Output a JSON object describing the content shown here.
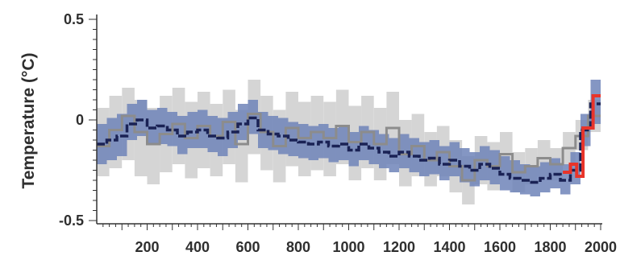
{
  "chart_data": {
    "type": "line",
    "title": "",
    "xlabel": "",
    "ylabel": "Temperature (°C)",
    "xlim": [
      0,
      2000
    ],
    "ylim": [
      -0.5,
      0.5
    ],
    "x_ticks": [
      200,
      400,
      600,
      800,
      1000,
      1200,
      1400,
      1600,
      1800,
      2000
    ],
    "x_tick_labels": [
      "200",
      "400",
      "600",
      "800",
      "1000",
      "1200",
      "1400",
      "1600",
      "1800",
      "2000"
    ],
    "y_ticks": [
      0.5,
      0,
      -0.5
    ],
    "y_tick_labels": [
      "0.5",
      "0",
      "-0.5"
    ],
    "grid": false,
    "legend": "none",
    "colors": {
      "dark_series": "#1a2255",
      "dark_band": "#6f84b8",
      "gray_series": "#8c8c8c",
      "gray_band": "#d3d3d3",
      "red_series": "#e8342a",
      "axis": "#333333"
    },
    "series": [
      {
        "id": "dark",
        "step": 40,
        "x": [
          0,
          40,
          80,
          120,
          160,
          200,
          240,
          280,
          320,
          360,
          400,
          440,
          480,
          520,
          560,
          600,
          640,
          680,
          720,
          760,
          800,
          840,
          880,
          920,
          960,
          1000,
          1040,
          1080,
          1120,
          1160,
          1200,
          1240,
          1280,
          1320,
          1360,
          1400,
          1440,
          1480,
          1520,
          1560,
          1600,
          1640,
          1680,
          1720,
          1760,
          1800,
          1840,
          1880,
          1920,
          1960
        ],
        "y": [
          -0.12,
          -0.1,
          -0.08,
          -0.02,
          0,
          -0.04,
          -0.03,
          -0.05,
          -0.08,
          -0.06,
          -0.05,
          -0.08,
          -0.09,
          -0.06,
          -0.02,
          0.01,
          -0.05,
          -0.07,
          -0.08,
          -0.1,
          -0.11,
          -0.12,
          -0.11,
          -0.13,
          -0.12,
          -0.15,
          -0.12,
          -0.14,
          -0.16,
          -0.18,
          -0.16,
          -0.18,
          -0.2,
          -0.19,
          -0.22,
          -0.2,
          -0.23,
          -0.25,
          -0.22,
          -0.24,
          -0.27,
          -0.29,
          -0.3,
          -0.31,
          -0.29,
          -0.27,
          -0.3,
          -0.25,
          -0.05,
          0.08
        ],
        "lo": [
          -0.22,
          -0.2,
          -0.18,
          -0.1,
          -0.08,
          -0.12,
          -0.12,
          -0.13,
          -0.17,
          -0.14,
          -0.14,
          -0.16,
          -0.18,
          -0.14,
          -0.1,
          -0.07,
          -0.14,
          -0.15,
          -0.17,
          -0.18,
          -0.19,
          -0.2,
          -0.19,
          -0.21,
          -0.2,
          -0.23,
          -0.2,
          -0.22,
          -0.24,
          -0.26,
          -0.24,
          -0.26,
          -0.28,
          -0.27,
          -0.3,
          -0.28,
          -0.31,
          -0.33,
          -0.3,
          -0.32,
          -0.35,
          -0.36,
          -0.37,
          -0.38,
          -0.36,
          -0.34,
          -0.37,
          -0.32,
          -0.13,
          -0.02
        ],
        "hi": [
          -0.02,
          0.01,
          0.03,
          0.08,
          0.1,
          0.05,
          0.06,
          0.04,
          0.02,
          0.04,
          0.05,
          0.02,
          0.01,
          0.04,
          0.08,
          0.1,
          0.04,
          0.02,
          0.01,
          -0.01,
          -0.02,
          -0.03,
          -0.02,
          -0.04,
          -0.03,
          -0.06,
          -0.03,
          -0.05,
          -0.07,
          -0.09,
          -0.07,
          -0.09,
          -0.11,
          -0.1,
          -0.13,
          -0.11,
          -0.14,
          -0.16,
          -0.13,
          -0.15,
          -0.18,
          -0.2,
          -0.22,
          -0.23,
          -0.21,
          -0.19,
          -0.22,
          -0.16,
          0.03,
          0.2
        ]
      },
      {
        "id": "gray",
        "step": 50,
        "x": [
          0,
          50,
          100,
          150,
          200,
          250,
          300,
          350,
          400,
          450,
          500,
          550,
          600,
          650,
          700,
          750,
          800,
          850,
          900,
          950,
          1000,
          1050,
          1100,
          1150,
          1200,
          1250,
          1300,
          1350,
          1400,
          1450,
          1500,
          1550,
          1600,
          1650,
          1700,
          1750,
          1800,
          1850,
          1900,
          1950
        ],
        "y": [
          -0.13,
          -0.05,
          0.02,
          -0.06,
          -0.12,
          -0.07,
          -0.02,
          -0.09,
          -0.03,
          -0.08,
          -0.01,
          -0.12,
          0.03,
          -0.06,
          -0.13,
          -0.04,
          -0.09,
          -0.06,
          -0.09,
          -0.03,
          -0.11,
          -0.06,
          -0.12,
          -0.04,
          -0.17,
          -0.13,
          -0.2,
          -0.16,
          -0.23,
          -0.3,
          -0.2,
          -0.23,
          -0.17,
          -0.26,
          -0.23,
          -0.19,
          -0.22,
          -0.14,
          -0.08,
          0.02
        ],
        "lo": [
          -0.28,
          -0.24,
          -0.2,
          -0.28,
          -0.32,
          -0.26,
          -0.22,
          -0.29,
          -0.24,
          -0.28,
          -0.22,
          -0.31,
          -0.17,
          -0.25,
          -0.31,
          -0.23,
          -0.28,
          -0.25,
          -0.28,
          -0.22,
          -0.3,
          -0.24,
          -0.3,
          -0.22,
          -0.33,
          -0.28,
          -0.33,
          -0.28,
          -0.36,
          -0.42,
          -0.32,
          -0.35,
          -0.28,
          -0.36,
          -0.32,
          -0.28,
          -0.3,
          -0.22,
          -0.15,
          -0.06
        ],
        "hi": [
          0.06,
          0.12,
          0.16,
          0.1,
          0.06,
          0.12,
          0.16,
          0.09,
          0.14,
          0.08,
          0.15,
          0.05,
          0.2,
          0.12,
          0.05,
          0.14,
          0.09,
          0.12,
          0.09,
          0.15,
          0.07,
          0.12,
          0.06,
          0.14,
          0.0,
          0.03,
          -0.06,
          -0.03,
          -0.1,
          -0.18,
          -0.08,
          -0.11,
          -0.06,
          -0.16,
          -0.14,
          -0.1,
          -0.14,
          -0.06,
          0.0,
          0.1
        ]
      },
      {
        "id": "red",
        "step": "varies",
        "x": [
          1850,
          1880,
          1905,
          1930,
          1970,
          2000
        ],
        "y": [
          -0.26,
          -0.22,
          -0.28,
          -0.04,
          0.12,
          0.12
        ]
      }
    ]
  }
}
